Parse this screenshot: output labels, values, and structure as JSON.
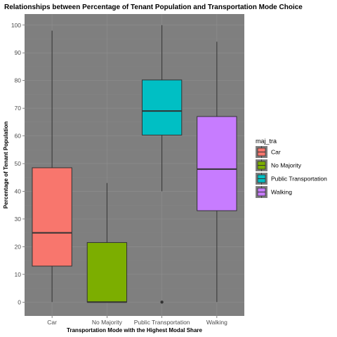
{
  "chart_data": {
    "type": "boxplot",
    "title": "Relationships between Percentage of Tenant Population and Transportation Mode Choice",
    "xlabel": "Transportation Mode with the Highest Modal Share",
    "ylabel": "Percentage of Tenant Population",
    "ylim": [
      -5,
      104
    ],
    "yticks": [
      0,
      10,
      20,
      30,
      40,
      50,
      60,
      70,
      80,
      90,
      100
    ],
    "categories": [
      "Car",
      "No Majority",
      "Public Transportation",
      "Walking"
    ],
    "boxes": [
      {
        "category": "Car",
        "min": 0,
        "q1": 13,
        "median": 25,
        "q3": 48.5,
        "max": 98,
        "outliers": [],
        "color": "#F8766D"
      },
      {
        "category": "No Majority",
        "min": 0,
        "q1": 0,
        "median": 0,
        "q3": 21.5,
        "max": 43,
        "outliers": [],
        "color": "#7CAE00"
      },
      {
        "category": "Public Transportation",
        "min": 40,
        "q1": 60.3,
        "median": 69,
        "q3": 80.2,
        "max": 100,
        "outliers": [
          0
        ],
        "color": "#00BFC4"
      },
      {
        "category": "Walking",
        "min": 0,
        "q1": 33,
        "median": 48,
        "q3": 67,
        "max": 94,
        "outliers": [],
        "color": "#C77CFF"
      }
    ],
    "legend": {
      "title": "maj_tra",
      "position": "right",
      "entries": [
        {
          "label": "Car",
          "color": "#F8766D"
        },
        {
          "label": "No Majority",
          "color": "#7CAE00"
        },
        {
          "label": "Public Transportation",
          "color": "#00BFC4"
        },
        {
          "label": "Walking",
          "color": "#C77CFF"
        }
      ]
    },
    "panel_background": "#7f7f7f",
    "grid": true
  }
}
